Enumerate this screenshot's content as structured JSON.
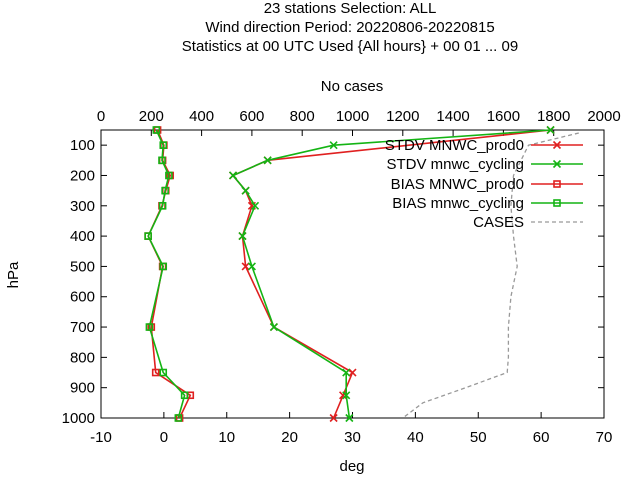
{
  "chart_data": {
    "type": "line",
    "title_lines": [
      "23 stations Selection: ALL",
      "Wind direction  Period: 20220806-20220815",
      "Statistics at 00 UTC  Used {All hours} + 00 01 ... 09"
    ],
    "xlabel": "deg",
    "ylabel": "hPa",
    "x2label": "No cases",
    "xlim": [
      -10,
      70
    ],
    "x2lim": [
      0,
      2000
    ],
    "ylim": [
      1000,
      50
    ],
    "x_ticks": [
      -10,
      0,
      10,
      20,
      30,
      40,
      50,
      60,
      70
    ],
    "x2_ticks": [
      0,
      200,
      400,
      600,
      800,
      1000,
      1200,
      1400,
      1600,
      1800,
      2000
    ],
    "y_ticks": [
      100,
      200,
      300,
      400,
      500,
      600,
      700,
      800,
      900,
      1000
    ],
    "legend_position": "top-right",
    "series": [
      {
        "name": "STDV MNWC_prod0",
        "color": "#e02020",
        "marker": "x",
        "axis": "bottom",
        "points": [
          {
            "y": 50,
            "x": 61.5
          },
          {
            "y": 150,
            "x": 16.5
          },
          {
            "y": 200,
            "x": 11
          },
          {
            "y": 250,
            "x": 13
          },
          {
            "y": 300,
            "x": 14
          },
          {
            "y": 400,
            "x": 12.5
          },
          {
            "y": 500,
            "x": 13
          },
          {
            "y": 700,
            "x": 17.5
          },
          {
            "y": 850,
            "x": 30
          },
          {
            "y": 925,
            "x": 28.5
          },
          {
            "y": 1000,
            "x": 27
          }
        ]
      },
      {
        "name": "STDV mnwc_cycling",
        "color": "#14b414",
        "marker": "x",
        "axis": "bottom",
        "points": [
          {
            "y": 50,
            "x": 61.5
          },
          {
            "y": 100,
            "x": 27
          },
          {
            "y": 150,
            "x": 16.5
          },
          {
            "y": 200,
            "x": 11
          },
          {
            "y": 250,
            "x": 13
          },
          {
            "y": 300,
            "x": 14.5
          },
          {
            "y": 400,
            "x": 12.5
          },
          {
            "y": 500,
            "x": 14
          },
          {
            "y": 700,
            "x": 17.5
          },
          {
            "y": 850,
            "x": 29
          },
          {
            "y": 925,
            "x": 29
          },
          {
            "y": 1000,
            "x": 29.5
          }
        ]
      },
      {
        "name": "BIAS MNWC_prod0",
        "color": "#e02020",
        "marker": "square",
        "axis": "bottom",
        "points": [
          {
            "y": 50,
            "x": -1
          },
          {
            "y": 100,
            "x": 0
          },
          {
            "y": 150,
            "x": -0.2
          },
          {
            "y": 200,
            "x": 1
          },
          {
            "y": 250,
            "x": 0.3
          },
          {
            "y": 300,
            "x": -0.3
          },
          {
            "y": 400,
            "x": -2.5
          },
          {
            "y": 500,
            "x": -0.2
          },
          {
            "y": 700,
            "x": -2
          },
          {
            "y": 850,
            "x": -1.3
          },
          {
            "y": 925,
            "x": 4.2
          },
          {
            "y": 1000,
            "x": 2.5
          }
        ]
      },
      {
        "name": "BIAS mnwc_cycling",
        "color": "#14b414",
        "marker": "square",
        "axis": "bottom",
        "points": [
          {
            "y": 50,
            "x": -1.2
          },
          {
            "y": 100,
            "x": -0.1
          },
          {
            "y": 150,
            "x": -0.3
          },
          {
            "y": 200,
            "x": 0.8
          },
          {
            "y": 250,
            "x": 0.2
          },
          {
            "y": 300,
            "x": -0.2
          },
          {
            "y": 400,
            "x": -2.5
          },
          {
            "y": 500,
            "x": -0.1
          },
          {
            "y": 700,
            "x": -2.3
          },
          {
            "y": 850,
            "x": -0.1
          },
          {
            "y": 925,
            "x": 3.3
          },
          {
            "y": 1000,
            "x": 2.3
          }
        ]
      },
      {
        "name": "CASES",
        "color": "#999999",
        "marker": "none",
        "dashed": true,
        "axis": "top",
        "points": [
          {
            "y": 60,
            "x": 1900
          },
          {
            "y": 100,
            "x": 1700
          },
          {
            "y": 200,
            "x": 1640
          },
          {
            "y": 300,
            "x": 1630
          },
          {
            "y": 400,
            "x": 1640
          },
          {
            "y": 500,
            "x": 1655
          },
          {
            "y": 600,
            "x": 1630
          },
          {
            "y": 700,
            "x": 1620
          },
          {
            "y": 800,
            "x": 1620
          },
          {
            "y": 850,
            "x": 1615
          },
          {
            "y": 900,
            "x": 1450
          },
          {
            "y": 950,
            "x": 1280
          },
          {
            "y": 1000,
            "x": 1200
          }
        ]
      }
    ]
  }
}
